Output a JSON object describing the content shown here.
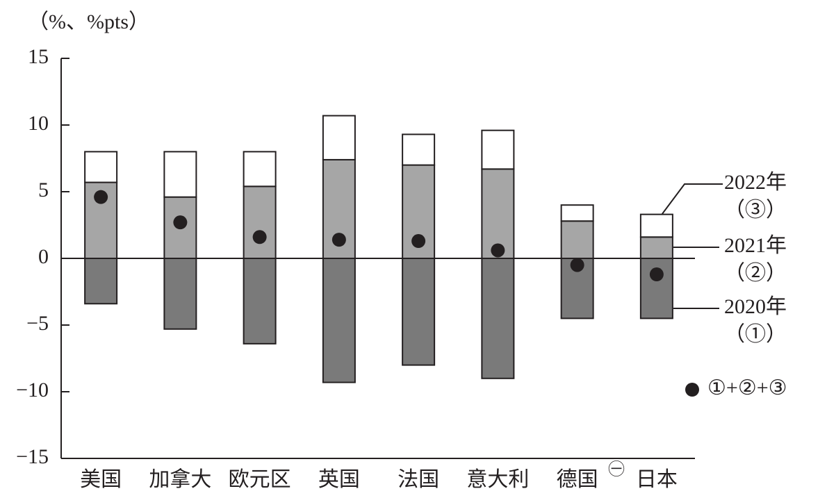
{
  "chart_data": {
    "type": "stacked_bar",
    "y_axis_label": "（%、%pts）",
    "categories": [
      "美国",
      "加拿大",
      "欧元区",
      "英国",
      "法国",
      "意大利",
      "德国",
      "日本"
    ],
    "footnote_marker": "㊀",
    "series": [
      {
        "name": "2020年",
        "label": "（①）",
        "color": "#7a7a7a",
        "values": [
          -3.4,
          -5.3,
          -6.4,
          -9.3,
          -8.0,
          -9.0,
          -4.5,
          -4.5
        ]
      },
      {
        "name": "2021年",
        "label": "（②）",
        "color": "#a6a6a6",
        "values": [
          5.7,
          4.6,
          5.4,
          7.4,
          7.0,
          6.7,
          2.8,
          1.6
        ]
      },
      {
        "name": "2022年",
        "label": "（③）",
        "color": "#ffffff",
        "values": [
          2.3,
          3.4,
          2.6,
          3.3,
          2.3,
          2.9,
          1.2,
          1.7
        ]
      }
    ],
    "total": {
      "name": "①+②+③",
      "color": "#231f20",
      "values": [
        4.6,
        2.7,
        1.6,
        1.4,
        1.3,
        0.6,
        -0.5,
        -1.2
      ]
    },
    "ylim": [
      -15,
      15
    ],
    "yticks": [
      {
        "value": -15,
        "label": "−15"
      },
      {
        "value": -10,
        "label": "−10"
      },
      {
        "value": -5,
        "label": "−5"
      },
      0,
      5,
      10,
      15
    ]
  }
}
